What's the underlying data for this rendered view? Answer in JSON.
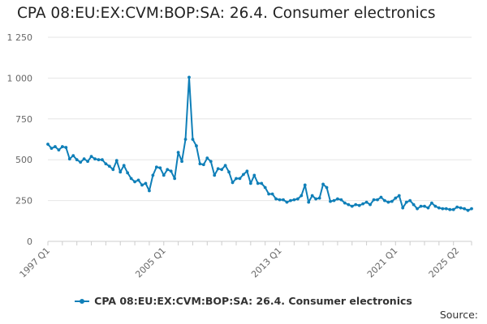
{
  "title": "CPA 08:EU:EX:CVM:BOP:SA: 26.4. Consumer electronics",
  "source_label": "Source:",
  "colors": {
    "series": "#0f7fb8",
    "grid": "#e6e6e6",
    "axis": "#cccccc",
    "text": "#666666"
  },
  "chart_data": {
    "type": "line",
    "title": "CPA 08:EU:EX:CVM:BOP:SA: 26.4. Consumer electronics",
    "xlabel": "",
    "ylabel": "",
    "xlim": [
      "1997 Q1",
      "2025 Q2"
    ],
    "ylim": [
      0,
      1250
    ],
    "yticks": [
      0,
      250,
      500,
      750,
      1000,
      1250
    ],
    "ytick_labels": [
      "0",
      "250",
      "500",
      "750",
      "1 000",
      "1 250"
    ],
    "xtick_labels": [
      "1997 Q1",
      "2005 Q1",
      "2013 Q1",
      "2021 Q1",
      "2025 Q2"
    ],
    "grid": "horizontal",
    "legend_position": "bottom",
    "series": [
      {
        "name": "CPA 08:EU:EX:CVM:BOP:SA: 26.4. Consumer electronics",
        "start": "1997 Q1",
        "frequency": "quarterly",
        "values": [
          595,
          570,
          580,
          560,
          580,
          575,
          505,
          525,
          500,
          485,
          505,
          490,
          520,
          505,
          500,
          500,
          475,
          460,
          440,
          495,
          425,
          465,
          420,
          385,
          365,
          375,
          345,
          355,
          310,
          405,
          455,
          450,
          405,
          440,
          430,
          385,
          545,
          490,
          625,
          1005,
          625,
          585,
          475,
          470,
          510,
          490,
          405,
          445,
          440,
          465,
          425,
          360,
          385,
          385,
          410,
          430,
          355,
          405,
          355,
          355,
          330,
          290,
          290,
          260,
          255,
          255,
          240,
          250,
          255,
          260,
          280,
          345,
          240,
          280,
          260,
          265,
          350,
          330,
          245,
          250,
          260,
          255,
          235,
          225,
          215,
          225,
          220,
          230,
          240,
          225,
          255,
          255,
          270,
          250,
          240,
          245,
          265,
          280,
          205,
          240,
          250,
          225,
          200,
          215,
          215,
          205,
          235,
          215,
          205,
          200,
          200,
          195,
          195,
          210,
          205,
          200,
          190,
          200
        ]
      }
    ]
  }
}
